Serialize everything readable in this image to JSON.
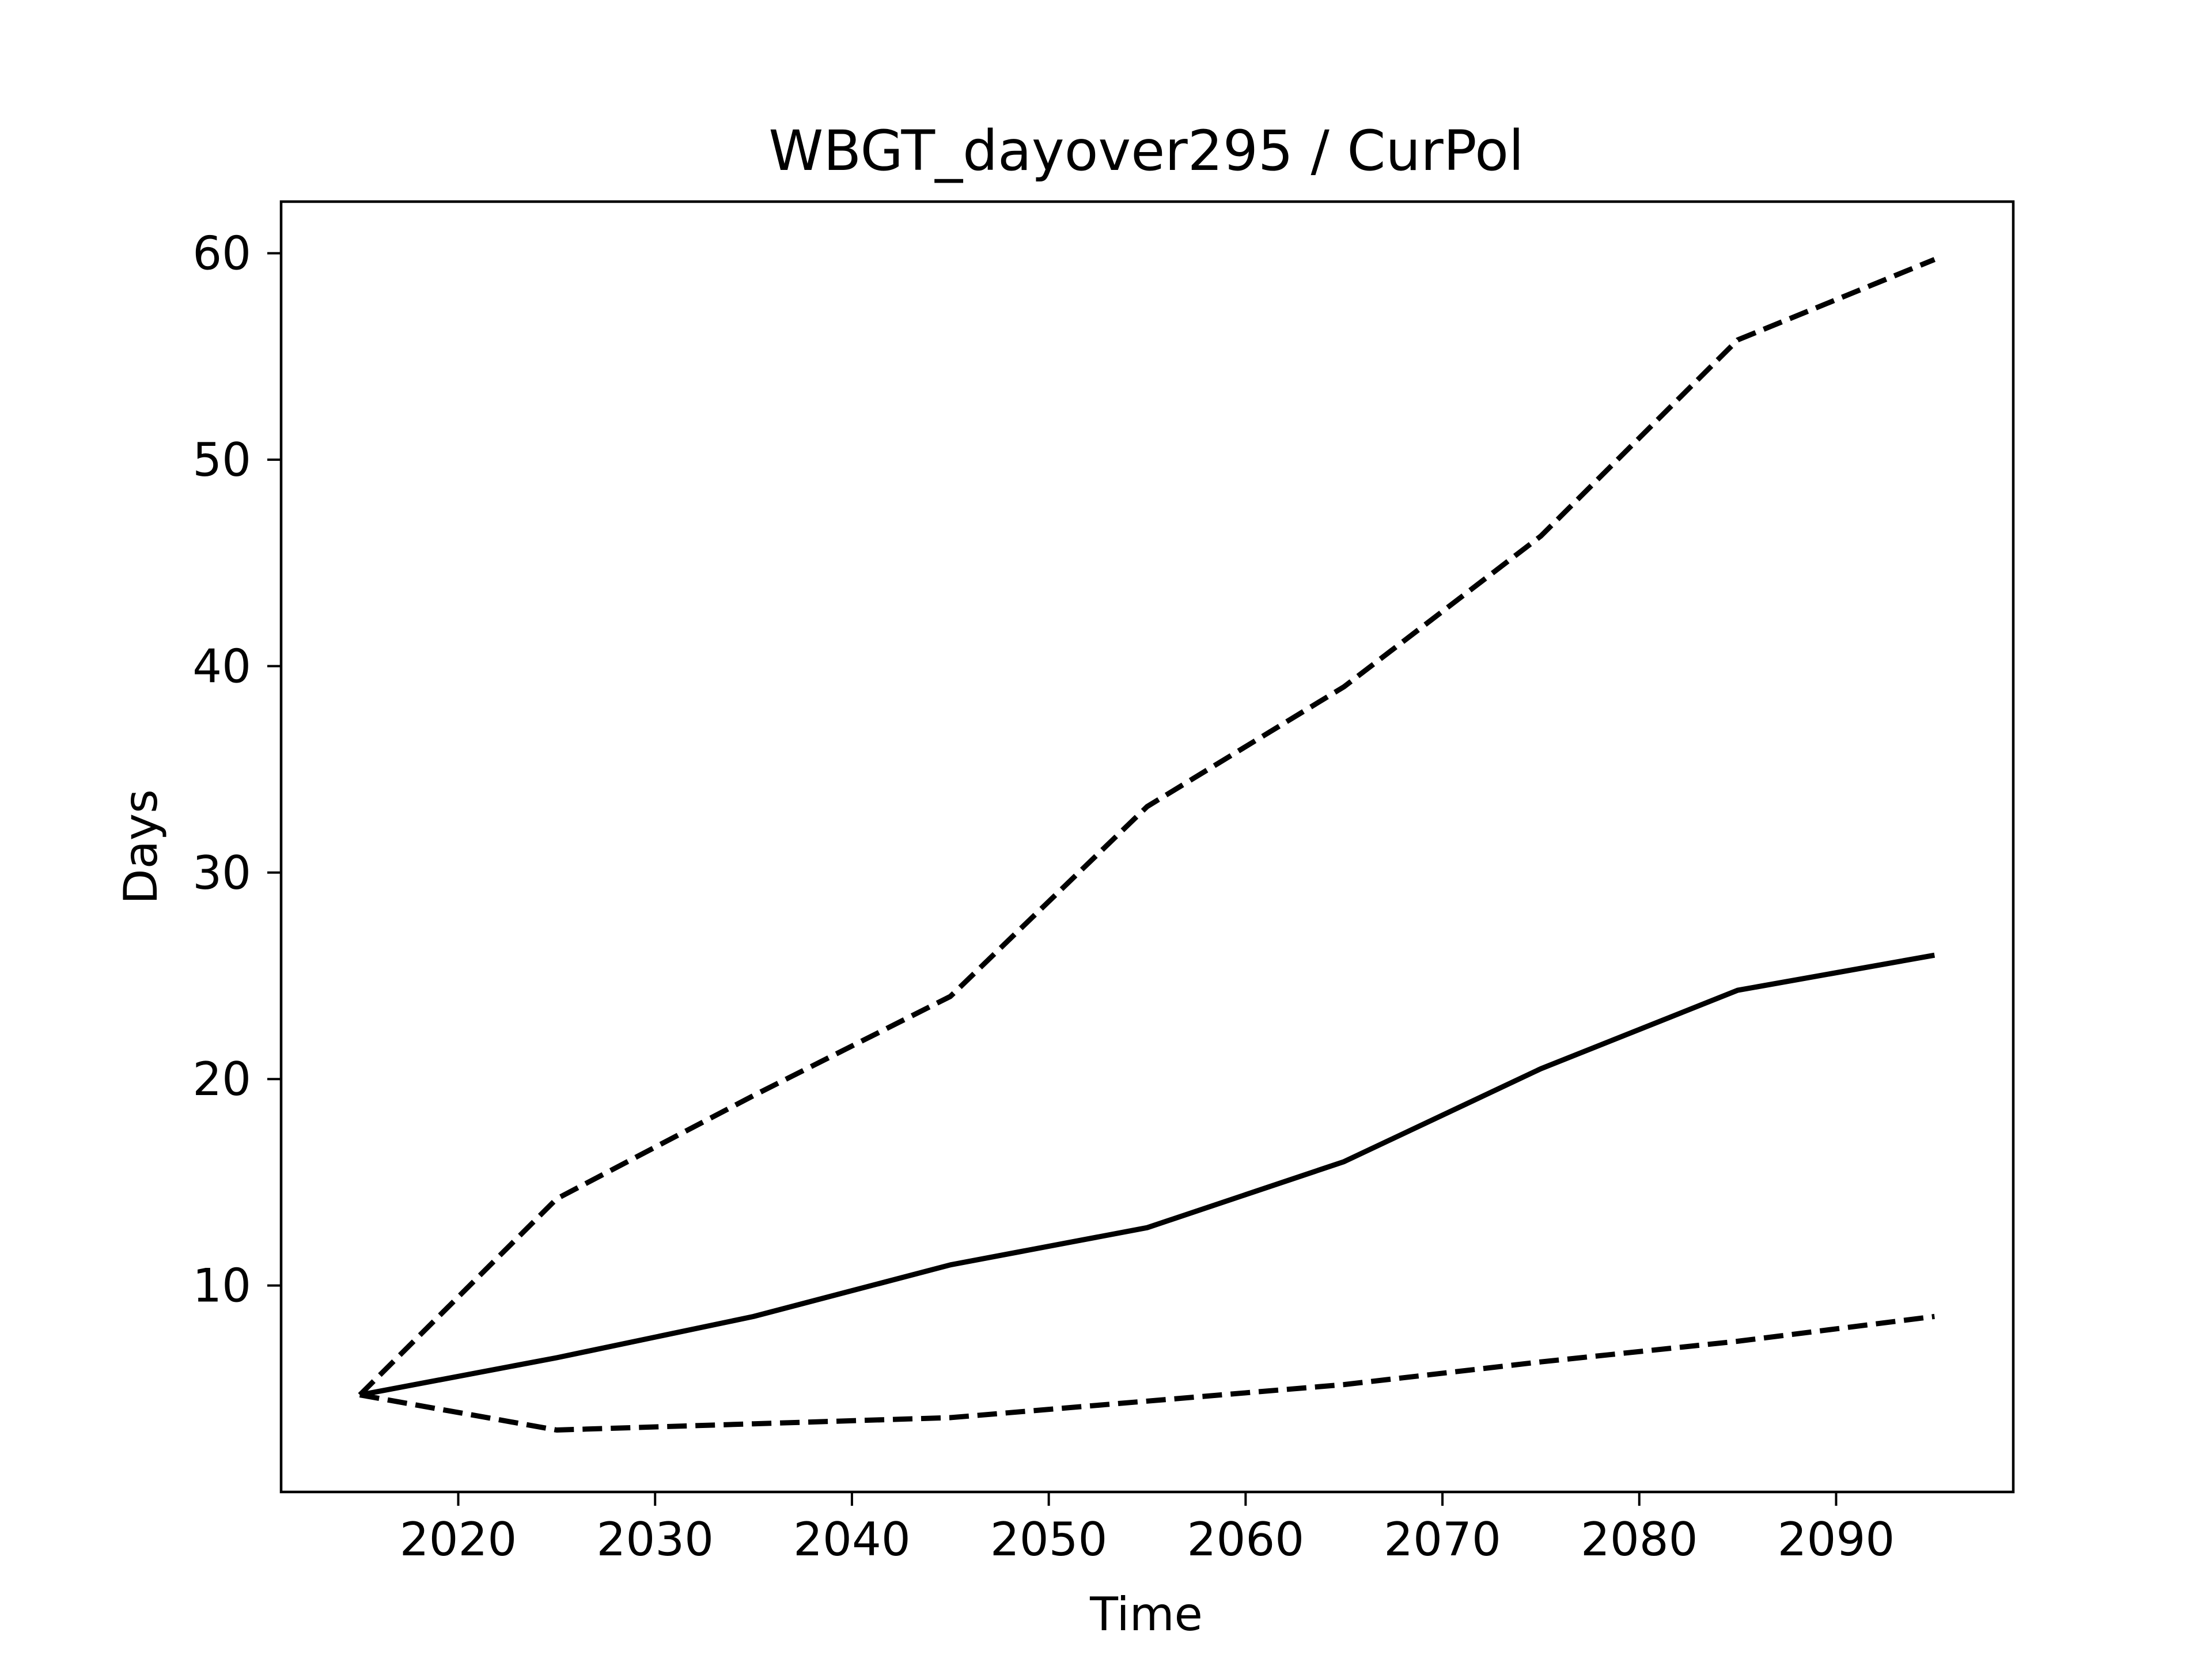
{
  "chart_data": {
    "type": "line",
    "title": "WBGT_dayover295 / CurPol",
    "xlabel": "Time",
    "ylabel": "Days",
    "xlim": [
      2011,
      2099
    ],
    "ylim": [
      0,
      62.5
    ],
    "xticks": [
      2020,
      2030,
      2040,
      2050,
      2060,
      2070,
      2080,
      2090
    ],
    "yticks": [
      10,
      20,
      30,
      40,
      50,
      60
    ],
    "grid": false,
    "x": [
      2015,
      2025,
      2035,
      2045,
      2055,
      2065,
      2075,
      2085,
      2095
    ],
    "series": [
      {
        "style": "dashed",
        "color": "#000000",
        "values": [
          4.7,
          14.2,
          19.2,
          24.0,
          33.2,
          39.0,
          46.3,
          55.8,
          59.7
        ]
      },
      {
        "style": "solid",
        "color": "#000000",
        "values": [
          4.7,
          6.5,
          8.5,
          11.0,
          12.8,
          16.0,
          20.5,
          24.3,
          26.0
        ]
      },
      {
        "style": "dashed",
        "color": "#000000",
        "values": [
          4.7,
          3.0,
          3.3,
          3.6,
          4.4,
          5.2,
          6.3,
          7.3,
          8.5
        ]
      }
    ]
  }
}
